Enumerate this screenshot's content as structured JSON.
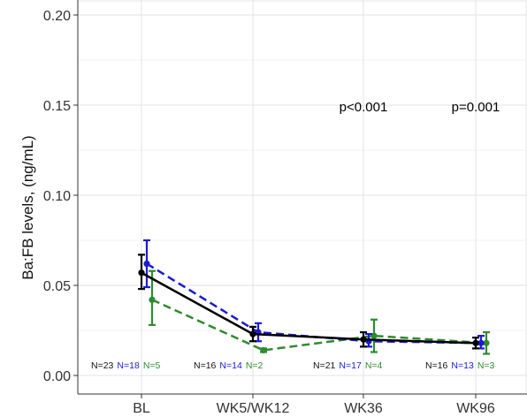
{
  "chart_data": {
    "type": "line",
    "title": "",
    "xlabel": "",
    "ylabel": "Ba:FB levels, (ng/mL)",
    "categories": [
      "BL",
      "WK5/WK12",
      "WK36",
      "WK96"
    ],
    "ylim": [
      0,
      0.2
    ],
    "yticks": [
      "0.00",
      "0.05",
      "0.10",
      "0.15",
      "0.20"
    ],
    "grid": true,
    "legend": "none",
    "series": [
      {
        "color": "#000000",
        "dash": "solid",
        "values": [
          0.057,
          0.023,
          0.02,
          0.018
        ],
        "err_low": [
          0.048,
          0.019,
          0.016,
          0.015
        ],
        "err_high": [
          0.067,
          0.027,
          0.024,
          0.021
        ],
        "n_labels": [
          "N=23",
          "N=16",
          "N=21",
          "N=16"
        ]
      },
      {
        "color": "#1a1ad6",
        "dash": "dashed",
        "values": [
          0.062,
          0.024,
          0.019,
          0.018
        ],
        "err_low": [
          0.049,
          0.019,
          0.016,
          0.015
        ],
        "err_high": [
          0.075,
          0.029,
          0.023,
          0.022
        ],
        "n_labels": [
          "N=18",
          "N=14",
          "N=17",
          "N=13"
        ]
      },
      {
        "color": "#2e8b2e",
        "dash": "dashed",
        "values": [
          0.042,
          0.014,
          0.022,
          0.018
        ],
        "err_low": [
          0.028,
          0.013,
          0.013,
          0.012
        ],
        "err_high": [
          0.058,
          0.015,
          0.031,
          0.024
        ],
        "n_labels": [
          "N=5",
          "N=2",
          "N=4",
          "N=3"
        ]
      }
    ],
    "annotations": [
      {
        "category_index": 2,
        "y": 0.149,
        "text": "p<0.001"
      },
      {
        "category_index": 3,
        "y": 0.149,
        "text": "p=0.001"
      }
    ]
  }
}
